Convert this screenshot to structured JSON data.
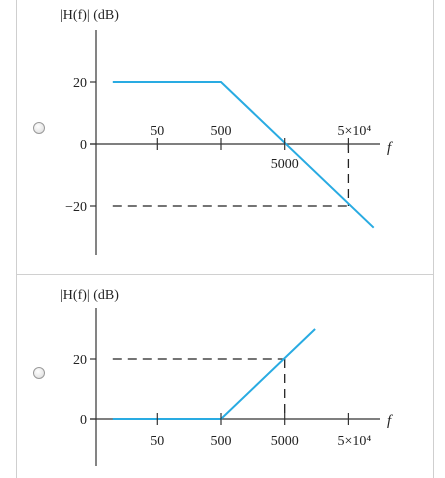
{
  "options": [
    {
      "id": "option-1",
      "ylabel": "|H(f)| (dB)",
      "xlabel": "f",
      "y_ticks": [
        "20",
        "0",
        "−20"
      ],
      "x_ticks": [
        "50",
        "500",
        "5×10⁴"
      ],
      "x_ticks_below": [
        "5000"
      ],
      "line_color": "#29abe2",
      "chart_data": {
        "type": "line",
        "x_scale": "log",
        "series": [
          {
            "x": [
              10,
              500,
              125000
            ],
            "y": [
              20,
              20,
              -27
            ]
          }
        ],
        "guides": [
          {
            "from": [
              50000,
              0
            ],
            "to": [
              50000,
              -20
            ]
          },
          {
            "from": [
              10,
              -20
            ],
            "to": [
              50000,
              -20
            ]
          }
        ]
      }
    },
    {
      "id": "option-2",
      "ylabel": "|H(f)| (dB)",
      "xlabel": "f",
      "y_ticks": [
        "20",
        "0"
      ],
      "x_ticks": [
        "50",
        "500",
        "5000",
        "5×10⁴"
      ],
      "line_color": "#29abe2",
      "chart_data": {
        "type": "line",
        "x_scale": "log",
        "series": [
          {
            "x": [
              10,
              500,
              15000
            ],
            "y": [
              0,
              0,
              30
            ]
          }
        ],
        "guides": [
          {
            "from": [
              10,
              20
            ],
            "to": [
              5000,
              20
            ]
          },
          {
            "from": [
              5000,
              20
            ],
            "to": [
              5000,
              0
            ]
          }
        ]
      }
    }
  ]
}
